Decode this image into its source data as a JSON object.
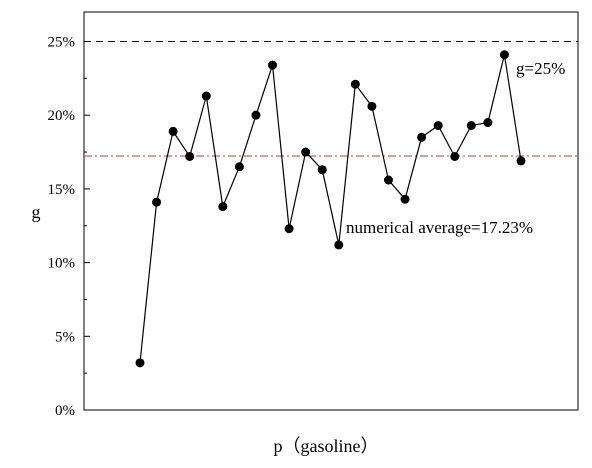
{
  "chart_data": {
    "type": "line",
    "xlabel": "p（gasoline）",
    "ylabel": "g",
    "ylim": [
      0,
      27
    ],
    "yticks": [
      0,
      5,
      10,
      15,
      20,
      25
    ],
    "ytick_labels": [
      "0%",
      "5%",
      "10%",
      "15%",
      "20%",
      "25%"
    ],
    "series": [
      {
        "x": [
          1,
          2,
          3,
          4,
          5,
          6,
          7,
          8,
          9,
          10,
          11,
          12,
          13,
          14,
          15,
          16,
          17,
          18,
          19,
          20,
          21,
          22,
          23,
          24
        ],
        "values": [
          3.2,
          14.1,
          18.9,
          17.2,
          21.3,
          13.8,
          16.5,
          20.0,
          23.4,
          12.3,
          17.5,
          16.3,
          11.2,
          22.1,
          20.6,
          15.6,
          14.3,
          18.5,
          19.3,
          17.2,
          19.3,
          19.5,
          24.1,
          16.9
        ],
        "color": "#000000",
        "marker": "circle"
      }
    ],
    "reference_lines": [
      {
        "value": 25,
        "label": "g=25%",
        "style": "dashed",
        "color": "#000000"
      },
      {
        "value": 17.23,
        "label": "numerical average=17.23%",
        "style": "dash-dot",
        "color": "#c0392b"
      }
    ],
    "grid": false
  }
}
